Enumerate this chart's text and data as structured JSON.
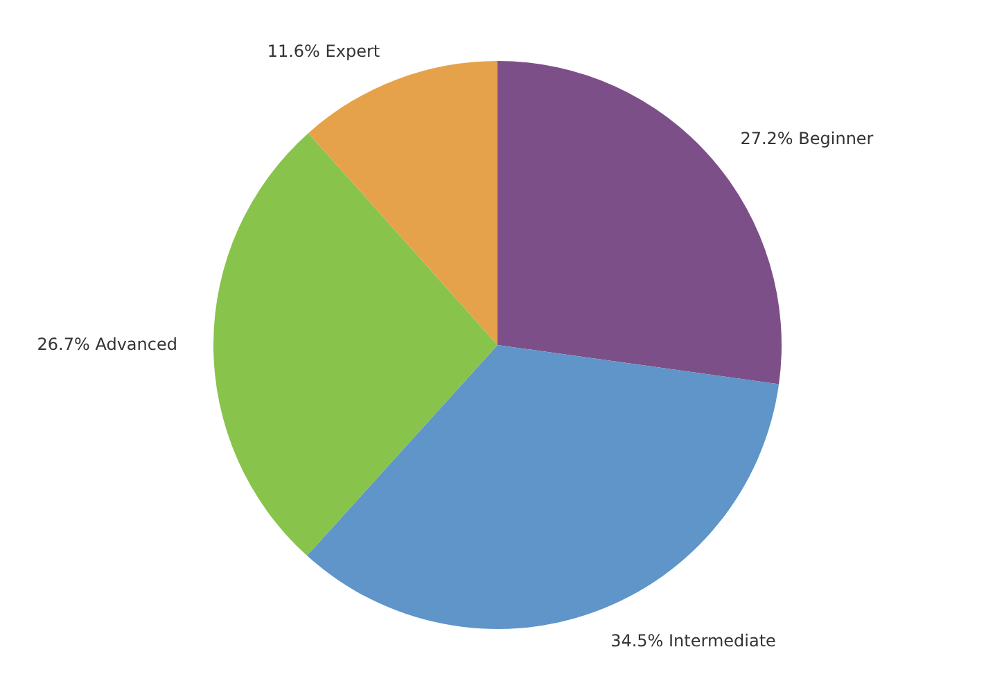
{
  "chart_data": {
    "type": "pie",
    "categories": [
      "Beginner",
      "Intermediate",
      "Advanced",
      "Expert"
    ],
    "values": [
      27.2,
      34.5,
      26.7,
      11.6
    ],
    "value_labels": [
      "27.2%",
      "34.5%",
      "26.7%",
      "11.6%"
    ],
    "colors": [
      "#7d4f88",
      "#5f95c8",
      "#88c34c",
      "#e6a24a"
    ]
  }
}
